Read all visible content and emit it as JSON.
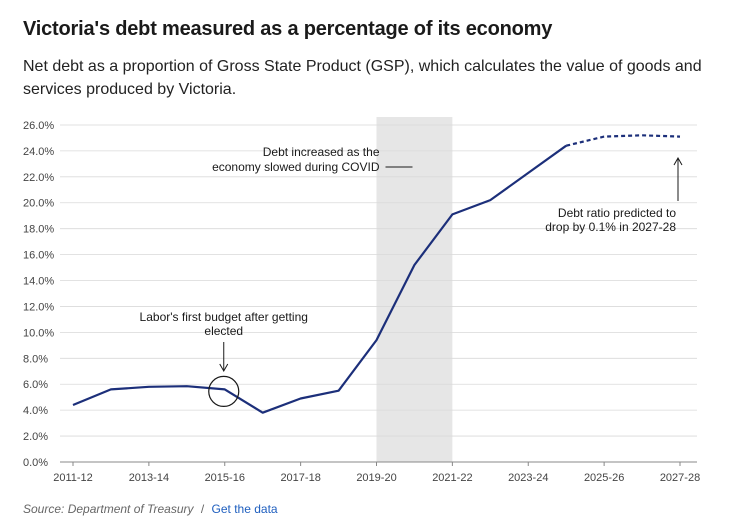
{
  "title": "Victoria's debt measured as a percentage of its economy",
  "subtitle": "Net debt as a proportion of Gross State Product (GSP), which calculates the value of goods and services produced by Victoria.",
  "source": {
    "text": "Source: Department of Treasury",
    "separator": "/",
    "link": "Get the data"
  },
  "colors": {
    "line": "#1c2f7a",
    "shade": "#e6e6e6",
    "grid": "#d9d9d9"
  },
  "chart_data": {
    "type": "line",
    "x": [
      "2011-12",
      "2012-13",
      "2013-14",
      "2014-15",
      "2015-16",
      "2016-17",
      "2017-18",
      "2018-19",
      "2019-20",
      "2020-21",
      "2021-22",
      "2022-23",
      "2023-24",
      "2024-25",
      "2025-26",
      "2026-27",
      "2027-28"
    ],
    "series": [
      {
        "values": [
          4.4,
          5.6,
          5.8,
          5.85,
          5.6,
          3.8,
          4.9,
          5.5,
          9.4,
          15.2,
          19.1,
          20.2,
          22.3,
          24.4,
          25.1,
          25.2,
          25.1
        ]
      }
    ],
    "actual_through": "2024-25",
    "forecast_from": "2024-25",
    "forecast_style": "dashed",
    "xticks": [
      "2011-12",
      "2013-14",
      "2015-16",
      "2017-18",
      "2019-20",
      "2021-22",
      "2023-24",
      "2025-26",
      "2027-28"
    ],
    "yticks": [
      "0.0%",
      "2.0%",
      "4.0%",
      "6.0%",
      "8.0%",
      "10.0%",
      "12.0%",
      "14.0%",
      "16.0%",
      "18.0%",
      "20.0%",
      "22.0%",
      "24.0%",
      "26.0%"
    ],
    "ylim": [
      0,
      27
    ],
    "xlabel": "",
    "ylabel": "",
    "grid": "horizontal",
    "shaded_period": [
      "2019-20",
      "2021-22"
    ],
    "annotations": [
      {
        "id": "covid",
        "lines": [
          "Debt increased as the",
          "economy slowed during COVID"
        ]
      },
      {
        "id": "budget",
        "lines": [
          "Labor's first budget after getting",
          "elected"
        ],
        "at": "2015-16"
      },
      {
        "id": "predict",
        "lines": [
          "Debt ratio predicted to",
          "drop by 0.1% in 2027-28"
        ],
        "at": "2027-28"
      }
    ]
  }
}
